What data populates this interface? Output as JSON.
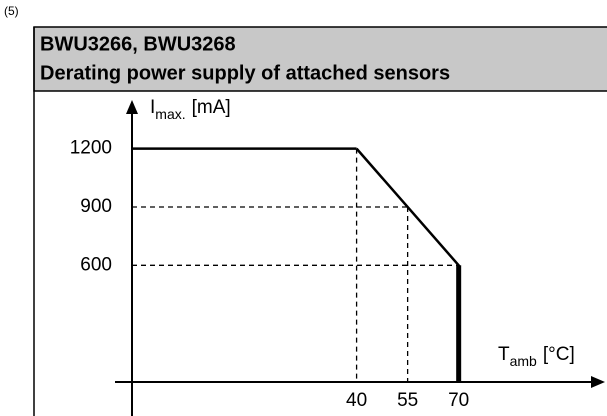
{
  "figure_number": "(5)",
  "chart_data": {
    "type": "line",
    "title": "BWU3266, BWU3268",
    "subtitle": "Derating power supply of attached sensors",
    "ylabel": {
      "main": "I",
      "sub": "max.",
      "unit": "[mA]"
    },
    "xlabel": {
      "main": "T",
      "sub": "amb",
      "unit": "[°C]"
    },
    "x": [
      40,
      70,
      70
    ],
    "series": [
      {
        "color": "#000000",
        "values": [
          1200,
          600,
          0
        ]
      }
    ],
    "xlim": [
      -26,
      113
    ],
    "ylim": [
      0,
      1450
    ],
    "xticks": [
      40,
      55,
      70
    ],
    "yticks": [
      600,
      900,
      1200
    ],
    "header_color": "#c8c8c8"
  }
}
